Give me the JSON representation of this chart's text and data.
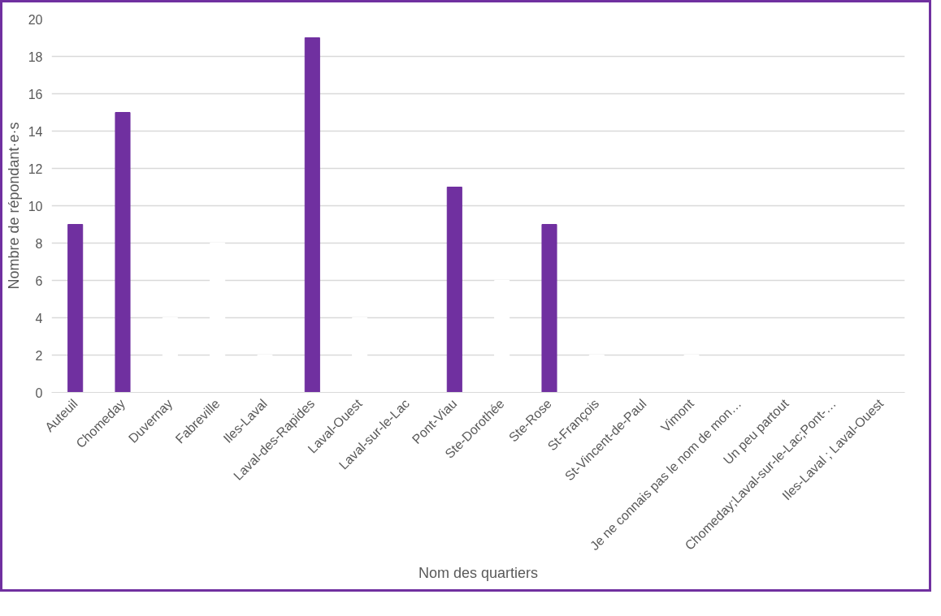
{
  "chart_data": {
    "type": "bar",
    "xlabel": "Nom des quartiers",
    "ylabel": "Nombre de répondant·e·s",
    "categories": [
      "Auteuil",
      "Chomeday",
      "Duvernay",
      "Fabreville",
      "Iles-Laval",
      "Laval-des-Rapides",
      "Laval-Ouest",
      "Laval-sur-le-Lac",
      "Pont-Viau",
      "Ste-Dorothée",
      "Ste-Rose",
      "St-François",
      "St-Vincent-de-Paul",
      "Vimont",
      "Je ne connais pas le nom de mon…",
      "Un peu partout",
      "Chomeday;Laval-sur-le-Lac;Pont-…",
      "Iles-Laval ; Laval-Ouest"
    ],
    "values": [
      9,
      15,
      4,
      8,
      2,
      19,
      4,
      0,
      11,
      6,
      9,
      2,
      0,
      2,
      0,
      0,
      0,
      0
    ],
    "colors": [
      "#7030a0",
      "#7030a0",
      "#ffffff",
      "#ffffff",
      "#ffffff",
      "#7030a0",
      "#ffffff",
      "#ffffff",
      "#7030a0",
      "#ffffff",
      "#7030a0",
      "#ffffff",
      "#ffffff",
      "#ffffff",
      "#ffffff",
      "#ffffff",
      "#ffffff",
      "#ffffff"
    ],
    "ylim": [
      0,
      20
    ],
    "yticks": [
      0,
      2,
      4,
      6,
      8,
      10,
      12,
      14,
      16,
      18,
      20
    ],
    "grid": "y"
  }
}
